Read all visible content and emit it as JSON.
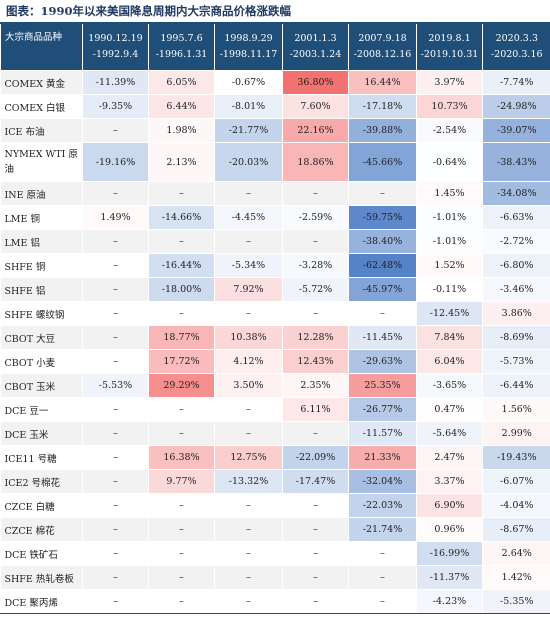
{
  "title": "图表：1990年以来美国降息周期内大宗商品价格涨跌幅",
  "table": {
    "corner": "大宗商品品种",
    "columns": [
      {
        "l1": "1990.12.19",
        "l2": "-1992.9.4"
      },
      {
        "l1": "1995.7.6",
        "l2": "-1996.1.31"
      },
      {
        "l1": "1998.9.29",
        "l2": "-1998.11.17"
      },
      {
        "l1": "2001.1.3",
        "l2": "-2003.1.24"
      },
      {
        "l1": "2007.9.18",
        "l2": "-2008.12.16"
      },
      {
        "l1": "2019.8.1",
        "l2": "-2019.10.31"
      },
      {
        "l1": "2020.3.3",
        "l2": "-2020.3.16"
      }
    ],
    "rows": [
      {
        "name": "COMEX 黄金",
        "cells": [
          "-11.39%",
          "6.05%",
          "-0.67%",
          "36.80%",
          "16.44%",
          "3.97%",
          "-7.74%"
        ]
      },
      {
        "name": "COMEX 白银",
        "cells": [
          "-9.35%",
          "6.44%",
          "-8.01%",
          "7.60%",
          "-17.18%",
          "10.73%",
          "-24.98%"
        ]
      },
      {
        "name": "ICE 布油",
        "cells": [
          "–",
          "1.98%",
          "-21.77%",
          "22.16%",
          "-39.88%",
          "-2.54%",
          "-39.07%"
        ]
      },
      {
        "name": "NYMEX WTI 原油",
        "cells": [
          "-19.16%",
          "2.13%",
          "-20.03%",
          "18.86%",
          "-45.66%",
          "-0.64%",
          "-38.43%"
        ]
      },
      {
        "name": "INE 原油",
        "cells": [
          "–",
          "–",
          "–",
          "–",
          "–",
          "1.45%",
          "-34.08%"
        ]
      },
      {
        "name": "LME 铜",
        "cells": [
          "1.49%",
          "-14.66%",
          "-4.45%",
          "-2.59%",
          "-59.75%",
          "-1.01%",
          "-6.63%"
        ]
      },
      {
        "name": "LME 铝",
        "cells": [
          "–",
          "–",
          "–",
          "–",
          "-38.40%",
          "-1.01%",
          "-2.72%"
        ]
      },
      {
        "name": "SHFE 铜",
        "cells": [
          "–",
          "-16.44%",
          "-5.34%",
          "-3.28%",
          "-62.48%",
          "1.52%",
          "-6.80%"
        ]
      },
      {
        "name": "SHFE 铝",
        "cells": [
          "–",
          "-18.00%",
          "7.92%",
          "-5.72%",
          "-45.97%",
          "-0.11%",
          "-3.46%"
        ]
      },
      {
        "name": "SHFE 螺纹钢",
        "cells": [
          "–",
          "–",
          "–",
          "–",
          "–",
          "-12.45%",
          "3.86%"
        ]
      },
      {
        "name": "CBOT 大豆",
        "cells": [
          "–",
          "18.77%",
          "10.38%",
          "12.28%",
          "-11.45%",
          "7.84%",
          "-8.69%"
        ]
      },
      {
        "name": "CBOT 小麦",
        "cells": [
          "–",
          "17.72%",
          "4.12%",
          "12.43%",
          "-29.63%",
          "6.04%",
          "-5.73%"
        ]
      },
      {
        "name": "CBOT 玉米",
        "cells": [
          "-5.53%",
          "29.29%",
          "3.50%",
          "2.35%",
          "25.35%",
          "-3.65%",
          "-6.44%"
        ]
      },
      {
        "name": "DCE 豆一",
        "cells": [
          "–",
          "–",
          "–",
          "6.11%",
          "-26.77%",
          "0.47%",
          "1.56%"
        ]
      },
      {
        "name": "DCE 玉米",
        "cells": [
          "–",
          "–",
          "–",
          "–",
          "-11.57%",
          "-5.64%",
          "2.99%"
        ]
      },
      {
        "name": "ICE11 号糖",
        "cells": [
          "–",
          "16.38%",
          "12.75%",
          "-22.09%",
          "21.33%",
          "2.47%",
          "-19.43%"
        ]
      },
      {
        "name": "ICE2 号棉花",
        "cells": [
          "–",
          "9.77%",
          "-13.32%",
          "-17.47%",
          "-32.04%",
          "3.37%",
          "-6.07%"
        ]
      },
      {
        "name": "CZCE 白糖",
        "cells": [
          "–",
          "–",
          "–",
          "–",
          "-22.03%",
          "6.90%",
          "-4.04%"
        ]
      },
      {
        "name": "CZCE 棉花",
        "cells": [
          "–",
          "–",
          "–",
          "–",
          "-21.74%",
          "0.96%",
          "-8.67%"
        ]
      },
      {
        "name": "DCE 铁矿石",
        "cells": [
          "–",
          "–",
          "–",
          "–",
          "–",
          "-16.99%",
          "2.64%"
        ]
      },
      {
        "name": "SHFE 热轧卷板",
        "cells": [
          "–",
          "–",
          "–",
          "–",
          "–",
          "-11.37%",
          "1.42%"
        ]
      },
      {
        "name": "DCE 聚丙烯",
        "cells": [
          "–",
          "–",
          "–",
          "–",
          "–",
          "-4.23%",
          "-5.35%"
        ]
      }
    ]
  }
}
